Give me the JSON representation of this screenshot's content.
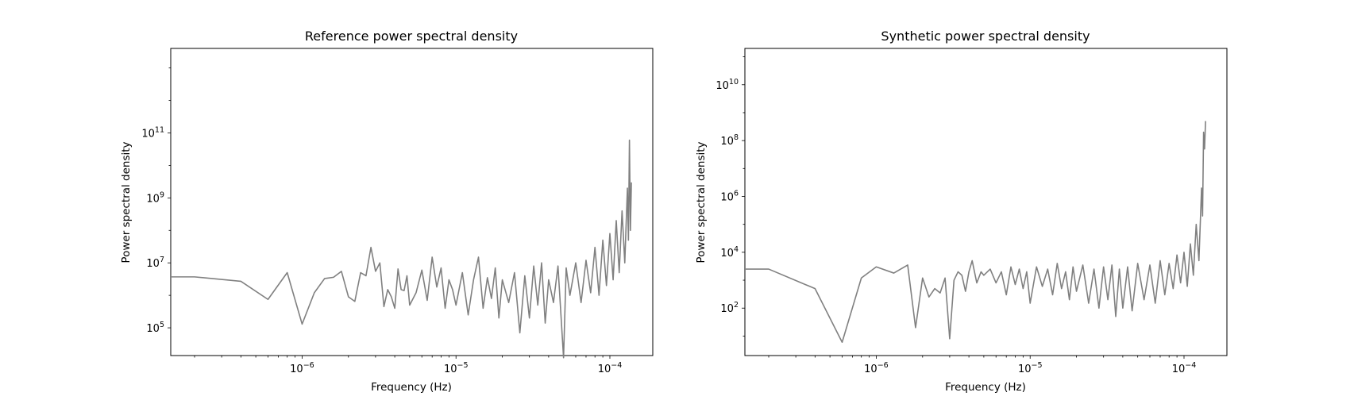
{
  "figure": {
    "line_color": "#808080",
    "axes_color": "#000000",
    "background": "#ffffff"
  },
  "chart_data": [
    {
      "type": "line",
      "title": "Reference power spectral density",
      "xlabel": "Frequency (Hz)",
      "ylabel": "Power spectral density",
      "xscale": "log",
      "yscale": "log",
      "xlim": [
        1.4e-07,
        0.00019
      ],
      "ylim": [
        14000,
        40000000000000
      ],
      "grid": false,
      "legend": "none",
      "xticks": [
        {
          "value": 1e-06,
          "base": "10",
          "exp": "−6"
        },
        {
          "value": 1e-05,
          "base": "10",
          "exp": "−5"
        },
        {
          "value": 0.0001,
          "base": "10",
          "exp": "−4"
        }
      ],
      "yticks": [
        {
          "value": 100000,
          "base": "10",
          "exp": "5"
        },
        {
          "value": 10000000,
          "base": "10",
          "exp": "7"
        },
        {
          "value": 1000000000,
          "base": "10",
          "exp": "9"
        },
        {
          "value": 100000000000,
          "base": "10",
          "exp": "11"
        }
      ],
      "series": [
        {
          "color": "#808080",
          "x": [
            1.4e-07,
            2e-07,
            4e-07,
            6e-07,
            8e-07,
            1e-06,
            1.2e-06,
            1.4e-06,
            1.6e-06,
            1.8e-06,
            2e-06,
            2.2e-06,
            2.4e-06,
            2.6e-06,
            2.8e-06,
            3e-06,
            3.2e-06,
            3.4e-06,
            3.6e-06,
            3.8e-06,
            4e-06,
            4.2e-06,
            4.4e-06,
            4.6e-06,
            4.8e-06,
            5e-06,
            5.5e-06,
            6e-06,
            6.5e-06,
            7e-06,
            7.5e-06,
            8e-06,
            8.5e-06,
            9e-06,
            9.5e-06,
            1e-05,
            1.1e-05,
            1.2e-05,
            1.3e-05,
            1.4e-05,
            1.5e-05,
            1.6e-05,
            1.7e-05,
            1.8e-05,
            1.9e-05,
            2e-05,
            2.2e-05,
            2.4e-05,
            2.6e-05,
            2.8e-05,
            3e-05,
            3.2e-05,
            3.4e-05,
            3.6e-05,
            3.8e-05,
            4e-05,
            4.3e-05,
            4.6e-05,
            5e-05,
            5.2e-05,
            5.5e-05,
            6e-05,
            6.5e-05,
            7e-05,
            7.5e-05,
            8e-05,
            8.5e-05,
            9e-05,
            9.5e-05,
            0.0001,
            0.000105,
            0.00011,
            0.000115,
            0.00012,
            0.000125,
            0.00013,
            0.000132,
            0.000134,
            0.000136,
            0.000138
          ],
          "y": [
            3700000,
            3700000,
            2700000,
            750000,
            5000000,
            130000,
            1200000,
            3300000,
            3600000,
            5500000,
            900000,
            650000,
            5000000,
            4000000,
            30000000,
            5500000,
            10000000,
            450000,
            1500000,
            900000,
            400000,
            6500000,
            1500000,
            1400000,
            4000000,
            500000,
            1200000,
            6000000,
            700000,
            15000000,
            1800000,
            7000000,
            400000,
            3000000,
            1500000,
            500000,
            5000000,
            250000,
            3000000,
            15000000,
            400000,
            3500000,
            800000,
            7000000,
            200000,
            3000000,
            600000,
            5000000,
            70000,
            4000000,
            200000,
            8000000,
            500000,
            10000000,
            140000,
            3000000,
            600000,
            8000000,
            12000,
            7000000,
            1000000,
            10000000,
            600000,
            12000000,
            1200000,
            30000000,
            1000000,
            50000000,
            2000000,
            80000000,
            3000000,
            200000000,
            5000000,
            400000000,
            10000000,
            2000000000,
            50000000,
            60000000000,
            100000000,
            3000000000
          ]
        }
      ]
    },
    {
      "type": "line",
      "title": "Synthetic power spectral density",
      "xlabel": "Frequency (Hz)",
      "ylabel": "Power spectral density",
      "xscale": "log",
      "yscale": "log",
      "xlim": [
        1.4e-07,
        0.00019
      ],
      "ylim": [
        2,
        200000000000
      ],
      "grid": false,
      "legend": "none",
      "xticks": [
        {
          "value": 1e-06,
          "base": "10",
          "exp": "−6"
        },
        {
          "value": 1e-05,
          "base": "10",
          "exp": "−5"
        },
        {
          "value": 0.0001,
          "base": "10",
          "exp": "−4"
        }
      ],
      "yticks": [
        {
          "value": 100,
          "base": "10",
          "exp": "2"
        },
        {
          "value": 10000,
          "base": "10",
          "exp": "4"
        },
        {
          "value": 1000000,
          "base": "10",
          "exp": "6"
        },
        {
          "value": 100000000,
          "base": "10",
          "exp": "8"
        },
        {
          "value": 10000000000,
          "base": "10",
          "exp": "10"
        }
      ],
      "series": [
        {
          "color": "#808080",
          "x": [
            1.4e-07,
            2e-07,
            4e-07,
            6e-07,
            8e-07,
            1e-06,
            1.3e-06,
            1.6e-06,
            1.8e-06,
            2e-06,
            2.2e-06,
            2.4e-06,
            2.6e-06,
            2.8e-06,
            3e-06,
            3.2e-06,
            3.4e-06,
            3.6e-06,
            3.8e-06,
            4e-06,
            4.2e-06,
            4.5e-06,
            4.8e-06,
            5e-06,
            5.5e-06,
            6e-06,
            6.5e-06,
            7e-06,
            7.5e-06,
            8e-06,
            8.5e-06,
            9e-06,
            9.5e-06,
            1e-05,
            1.1e-05,
            1.2e-05,
            1.3e-05,
            1.4e-05,
            1.5e-05,
            1.6e-05,
            1.7e-05,
            1.8e-05,
            1.9e-05,
            2e-05,
            2.2e-05,
            2.4e-05,
            2.6e-05,
            2.8e-05,
            3e-05,
            3.2e-05,
            3.4e-05,
            3.6e-05,
            3.8e-05,
            4e-05,
            4.3e-05,
            4.6e-05,
            5e-05,
            5.5e-05,
            6e-05,
            6.5e-05,
            7e-05,
            7.5e-05,
            8e-05,
            8.5e-05,
            9e-05,
            9.5e-05,
            0.0001,
            0.000105,
            0.00011,
            0.000115,
            0.00012,
            0.000125,
            0.00013,
            0.000132,
            0.000134,
            0.000136,
            0.000138
          ],
          "y": [
            2500,
            2500,
            500,
            6,
            1200,
            3000,
            1800,
            3500,
            20,
            1200,
            250,
            500,
            350,
            1200,
            8,
            1000,
            2000,
            1500,
            400,
            2000,
            5000,
            800,
            2000,
            1500,
            2500,
            800,
            2000,
            300,
            3000,
            700,
            2500,
            500,
            2000,
            150,
            3000,
            600,
            2500,
            300,
            4000,
            500,
            2000,
            200,
            3000,
            400,
            3500,
            150,
            2500,
            100,
            3000,
            200,
            3500,
            50,
            2500,
            100,
            3000,
            80,
            4000,
            200,
            3500,
            150,
            5000,
            300,
            4000,
            500,
            8000,
            800,
            10000,
            600,
            20000,
            1500,
            100000,
            5000,
            2000000,
            200000,
            200000000,
            50000000,
            500000000
          ]
        }
      ]
    }
  ]
}
